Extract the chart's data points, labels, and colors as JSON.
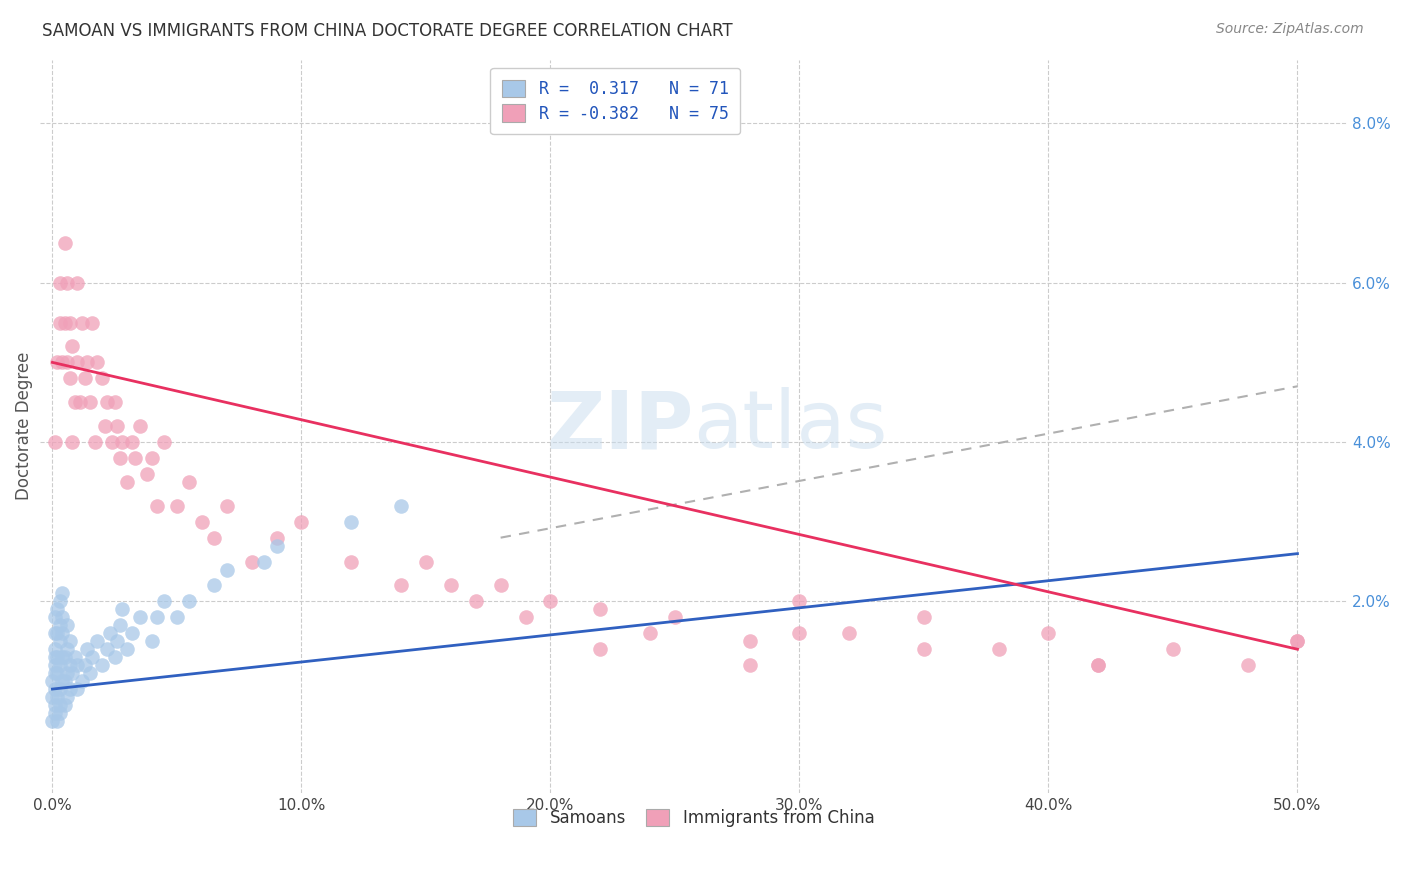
{
  "title": "SAMOAN VS IMMIGRANTS FROM CHINA DOCTORATE DEGREE CORRELATION CHART",
  "source": "Source: ZipAtlas.com",
  "ylabel": "Doctorate Degree",
  "color_blue": "#A8C8E8",
  "color_pink": "#F0A0B8",
  "color_blue_dark": "#3060C0",
  "color_pink_dark": "#E83060",
  "color_gray": "#B0B0B0",
  "samoans_x": [
    0.0,
    0.0,
    0.0,
    0.001,
    0.001,
    0.001,
    0.001,
    0.001,
    0.001,
    0.001,
    0.001,
    0.001,
    0.002,
    0.002,
    0.002,
    0.002,
    0.002,
    0.002,
    0.003,
    0.003,
    0.003,
    0.003,
    0.003,
    0.003,
    0.003,
    0.004,
    0.004,
    0.004,
    0.004,
    0.004,
    0.005,
    0.005,
    0.005,
    0.006,
    0.006,
    0.006,
    0.006,
    0.007,
    0.007,
    0.007,
    0.008,
    0.009,
    0.01,
    0.01,
    0.012,
    0.013,
    0.014,
    0.015,
    0.016,
    0.018,
    0.02,
    0.022,
    0.023,
    0.025,
    0.026,
    0.027,
    0.028,
    0.03,
    0.032,
    0.035,
    0.04,
    0.042,
    0.045,
    0.05,
    0.055,
    0.065,
    0.07,
    0.085,
    0.09,
    0.12,
    0.14
  ],
  "samoans_y": [
    0.005,
    0.008,
    0.01,
    0.006,
    0.009,
    0.012,
    0.014,
    0.016,
    0.018,
    0.007,
    0.011,
    0.013,
    0.005,
    0.008,
    0.011,
    0.013,
    0.016,
    0.019,
    0.006,
    0.009,
    0.012,
    0.015,
    0.017,
    0.02,
    0.007,
    0.01,
    0.013,
    0.016,
    0.018,
    0.021,
    0.007,
    0.01,
    0.013,
    0.008,
    0.011,
    0.014,
    0.017,
    0.009,
    0.012,
    0.015,
    0.011,
    0.013,
    0.009,
    0.012,
    0.01,
    0.012,
    0.014,
    0.011,
    0.013,
    0.015,
    0.012,
    0.014,
    0.016,
    0.013,
    0.015,
    0.017,
    0.019,
    0.014,
    0.016,
    0.018,
    0.015,
    0.018,
    0.02,
    0.018,
    0.02,
    0.022,
    0.024,
    0.025,
    0.027,
    0.03,
    0.032
  ],
  "china_x": [
    0.001,
    0.002,
    0.003,
    0.003,
    0.004,
    0.005,
    0.005,
    0.006,
    0.006,
    0.007,
    0.007,
    0.008,
    0.008,
    0.009,
    0.01,
    0.01,
    0.011,
    0.012,
    0.013,
    0.014,
    0.015,
    0.016,
    0.017,
    0.018,
    0.02,
    0.021,
    0.022,
    0.024,
    0.025,
    0.026,
    0.027,
    0.028,
    0.03,
    0.032,
    0.033,
    0.035,
    0.038,
    0.04,
    0.042,
    0.045,
    0.05,
    0.055,
    0.06,
    0.065,
    0.07,
    0.08,
    0.09,
    0.1,
    0.12,
    0.14,
    0.15,
    0.16,
    0.17,
    0.18,
    0.19,
    0.2,
    0.22,
    0.24,
    0.25,
    0.28,
    0.3,
    0.32,
    0.35,
    0.38,
    0.4,
    0.42,
    0.45,
    0.48,
    0.5,
    0.28,
    0.35,
    0.42,
    0.5,
    0.22,
    0.3
  ],
  "china_y": [
    0.04,
    0.05,
    0.06,
    0.055,
    0.05,
    0.065,
    0.055,
    0.06,
    0.05,
    0.055,
    0.048,
    0.052,
    0.04,
    0.045,
    0.06,
    0.05,
    0.045,
    0.055,
    0.048,
    0.05,
    0.045,
    0.055,
    0.04,
    0.05,
    0.048,
    0.042,
    0.045,
    0.04,
    0.045,
    0.042,
    0.038,
    0.04,
    0.035,
    0.04,
    0.038,
    0.042,
    0.036,
    0.038,
    0.032,
    0.04,
    0.032,
    0.035,
    0.03,
    0.028,
    0.032,
    0.025,
    0.028,
    0.03,
    0.025,
    0.022,
    0.025,
    0.022,
    0.02,
    0.022,
    0.018,
    0.02,
    0.019,
    0.016,
    0.018,
    0.015,
    0.02,
    0.016,
    0.018,
    0.014,
    0.016,
    0.012,
    0.014,
    0.012,
    0.015,
    0.012,
    0.014,
    0.012,
    0.015,
    0.014,
    0.016
  ],
  "blue_line": {
    "x0": 0.0,
    "y0": 0.009,
    "x1": 0.5,
    "y1": 0.026
  },
  "pink_line": {
    "x0": 0.0,
    "y0": 0.05,
    "x1": 0.5,
    "y1": 0.014
  },
  "gray_line": {
    "x0": 0.18,
    "y0": 0.028,
    "x1": 0.5,
    "y1": 0.047
  },
  "xlim": [
    -0.005,
    0.52
  ],
  "ylim": [
    -0.004,
    0.088
  ],
  "x_ticks": [
    0.0,
    0.1,
    0.2,
    0.3,
    0.4,
    0.5
  ],
  "x_tick_labels": [
    "0.0%",
    "10.0%",
    "20.0%",
    "30.0%",
    "40.0%",
    "50.0%"
  ],
  "y_ticks": [
    0.0,
    0.02,
    0.04,
    0.06,
    0.08
  ],
  "y_tick_labels_right": [
    "",
    "2.0%",
    "4.0%",
    "6.0%",
    "8.0%"
  ]
}
